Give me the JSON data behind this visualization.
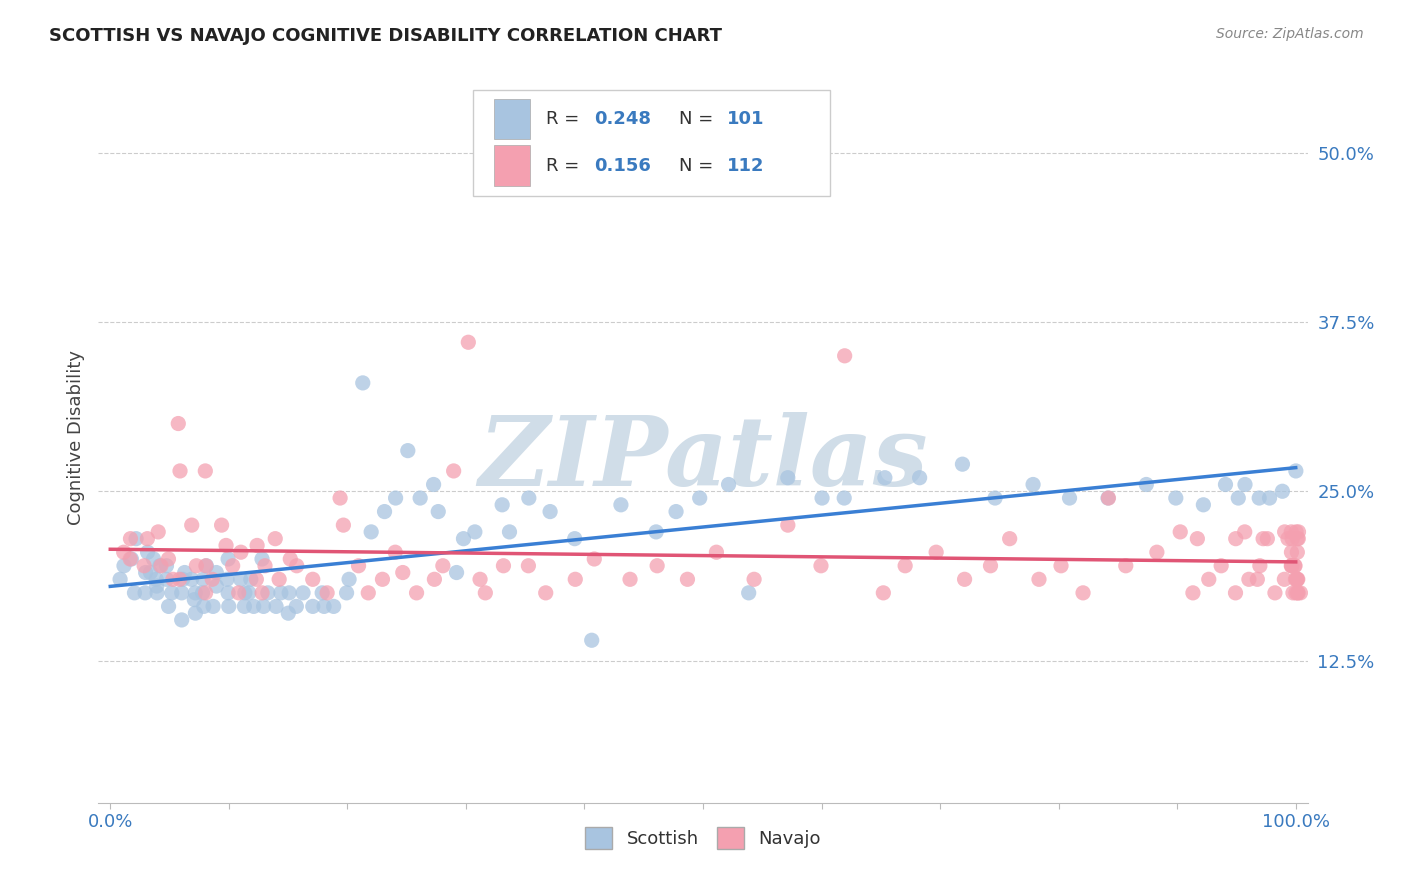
{
  "title": "SCOTTISH VS NAVAJO COGNITIVE DISABILITY CORRELATION CHART",
  "source": "Source: ZipAtlas.com",
  "ylabel": "Cognitive Disability",
  "y_ticks": [
    0.125,
    0.25,
    0.375,
    0.5
  ],
  "y_tick_labels": [
    "12.5%",
    "25.0%",
    "37.5%",
    "50.0%"
  ],
  "x_ticks": [
    0.0,
    0.1,
    0.2,
    0.3,
    0.4,
    0.5,
    0.6,
    0.7,
    0.8,
    0.9,
    1.0
  ],
  "xlim": [
    -0.01,
    1.01
  ],
  "ylim": [
    0.02,
    0.56
  ],
  "legend_r_scottish": "0.248",
  "legend_n_scottish": "101",
  "legend_r_navajo": "0.156",
  "legend_n_navajo": "112",
  "scottish_color": "#a8c4e0",
  "navajo_color": "#f4a0b0",
  "line_scottish_color": "#3a7fd4",
  "line_navajo_color": "#e05575",
  "watermark_text": "ZIPatlas",
  "watermark_color": "#d0dde8",
  "background_color": "#ffffff",
  "legend_text_color": "#3a7abf",
  "scottish_points_x": [
    0.01,
    0.01,
    0.02,
    0.02,
    0.02,
    0.03,
    0.03,
    0.03,
    0.03,
    0.04,
    0.04,
    0.04,
    0.04,
    0.04,
    0.05,
    0.05,
    0.05,
    0.05,
    0.06,
    0.06,
    0.06,
    0.06,
    0.07,
    0.07,
    0.07,
    0.07,
    0.08,
    0.08,
    0.08,
    0.08,
    0.09,
    0.09,
    0.09,
    0.1,
    0.1,
    0.1,
    0.1,
    0.11,
    0.11,
    0.11,
    0.12,
    0.12,
    0.12,
    0.13,
    0.13,
    0.13,
    0.14,
    0.14,
    0.15,
    0.15,
    0.16,
    0.16,
    0.17,
    0.18,
    0.18,
    0.19,
    0.2,
    0.2,
    0.21,
    0.22,
    0.23,
    0.24,
    0.25,
    0.26,
    0.27,
    0.28,
    0.29,
    0.3,
    0.31,
    0.33,
    0.34,
    0.35,
    0.37,
    0.39,
    0.41,
    0.43,
    0.46,
    0.48,
    0.5,
    0.52,
    0.54,
    0.57,
    0.6,
    0.62,
    0.65,
    0.68,
    0.72,
    0.75,
    0.78,
    0.81,
    0.84,
    0.87,
    0.9,
    0.92,
    0.94,
    0.95,
    0.96,
    0.97,
    0.98,
    0.99,
    1.0
  ],
  "scottish_points_y": [
    0.195,
    0.185,
    0.2,
    0.175,
    0.215,
    0.175,
    0.19,
    0.205,
    0.19,
    0.18,
    0.185,
    0.195,
    0.175,
    0.2,
    0.165,
    0.175,
    0.185,
    0.195,
    0.155,
    0.175,
    0.185,
    0.19,
    0.16,
    0.17,
    0.175,
    0.185,
    0.165,
    0.175,
    0.185,
    0.195,
    0.165,
    0.18,
    0.19,
    0.165,
    0.175,
    0.185,
    0.2,
    0.165,
    0.175,
    0.185,
    0.165,
    0.175,
    0.185,
    0.165,
    0.175,
    0.2,
    0.165,
    0.175,
    0.16,
    0.175,
    0.165,
    0.175,
    0.165,
    0.165,
    0.175,
    0.165,
    0.175,
    0.185,
    0.33,
    0.22,
    0.235,
    0.245,
    0.28,
    0.245,
    0.255,
    0.235,
    0.19,
    0.215,
    0.22,
    0.24,
    0.22,
    0.245,
    0.235,
    0.215,
    0.14,
    0.24,
    0.22,
    0.235,
    0.245,
    0.255,
    0.175,
    0.26,
    0.245,
    0.245,
    0.26,
    0.26,
    0.27,
    0.245,
    0.255,
    0.245,
    0.245,
    0.255,
    0.245,
    0.24,
    0.255,
    0.245,
    0.255,
    0.245,
    0.245,
    0.25,
    0.265
  ],
  "navajo_points_x": [
    0.01,
    0.02,
    0.02,
    0.03,
    0.03,
    0.04,
    0.04,
    0.05,
    0.05,
    0.06,
    0.06,
    0.06,
    0.07,
    0.07,
    0.08,
    0.08,
    0.08,
    0.09,
    0.09,
    0.1,
    0.1,
    0.11,
    0.11,
    0.12,
    0.12,
    0.13,
    0.13,
    0.14,
    0.14,
    0.15,
    0.16,
    0.17,
    0.18,
    0.19,
    0.2,
    0.21,
    0.22,
    0.23,
    0.24,
    0.25,
    0.26,
    0.27,
    0.28,
    0.29,
    0.3,
    0.31,
    0.32,
    0.33,
    0.35,
    0.37,
    0.39,
    0.41,
    0.44,
    0.46,
    0.49,
    0.51,
    0.54,
    0.57,
    0.6,
    0.62,
    0.65,
    0.67,
    0.7,
    0.72,
    0.74,
    0.76,
    0.78,
    0.8,
    0.82,
    0.84,
    0.86,
    0.88,
    0.9,
    0.91,
    0.92,
    0.93,
    0.94,
    0.95,
    0.95,
    0.96,
    0.96,
    0.97,
    0.97,
    0.97,
    0.98,
    0.98,
    0.99,
    0.99,
    0.99,
    1.0,
    1.0,
    1.0,
    1.0,
    1.0,
    1.0,
    1.0,
    1.0,
    1.0,
    1.0,
    1.0,
    1.0,
    1.0,
    1.0,
    1.0,
    1.0,
    1.0,
    1.0,
    1.0,
    1.0,
    1.0,
    1.0,
    1.0
  ],
  "navajo_points_y": [
    0.205,
    0.2,
    0.215,
    0.195,
    0.215,
    0.195,
    0.22,
    0.185,
    0.2,
    0.185,
    0.265,
    0.3,
    0.195,
    0.225,
    0.175,
    0.195,
    0.265,
    0.185,
    0.225,
    0.195,
    0.21,
    0.175,
    0.205,
    0.185,
    0.21,
    0.175,
    0.195,
    0.185,
    0.215,
    0.2,
    0.195,
    0.185,
    0.175,
    0.245,
    0.225,
    0.195,
    0.175,
    0.185,
    0.205,
    0.19,
    0.175,
    0.185,
    0.195,
    0.265,
    0.36,
    0.185,
    0.175,
    0.195,
    0.195,
    0.175,
    0.185,
    0.2,
    0.185,
    0.195,
    0.185,
    0.205,
    0.185,
    0.225,
    0.195,
    0.35,
    0.175,
    0.195,
    0.205,
    0.185,
    0.195,
    0.215,
    0.185,
    0.195,
    0.175,
    0.245,
    0.195,
    0.205,
    0.22,
    0.175,
    0.215,
    0.185,
    0.195,
    0.175,
    0.215,
    0.185,
    0.22,
    0.185,
    0.215,
    0.195,
    0.175,
    0.215,
    0.185,
    0.215,
    0.22,
    0.175,
    0.185,
    0.195,
    0.205,
    0.22,
    0.185,
    0.195,
    0.175,
    0.185,
    0.215,
    0.22,
    0.195,
    0.185,
    0.175,
    0.215,
    0.185,
    0.195,
    0.175,
    0.215,
    0.205,
    0.22,
    0.175,
    0.195
  ]
}
